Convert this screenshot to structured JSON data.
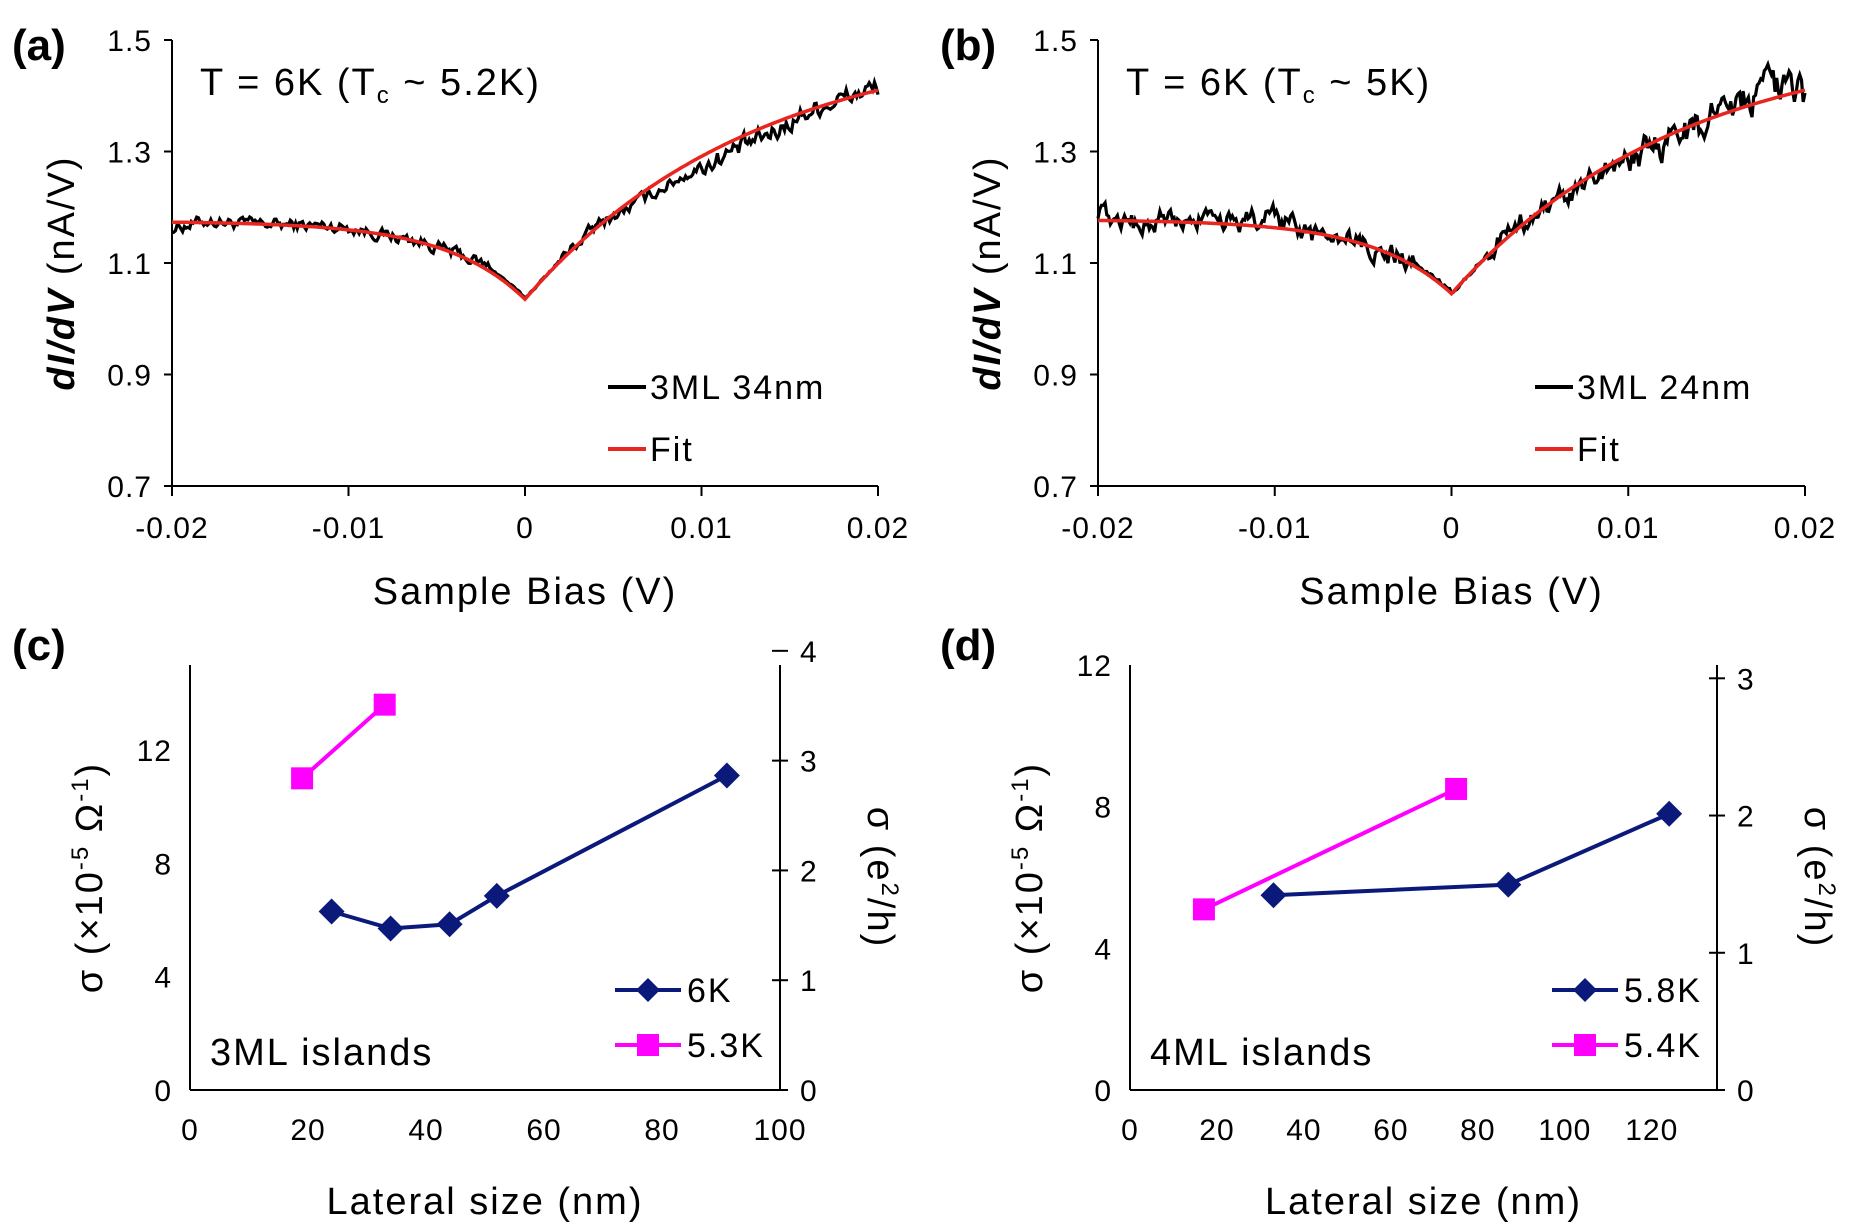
{
  "chart_data": [
    {
      "panel": "(a)",
      "type": "line",
      "annotation": {
        "main": "T = 6K (T",
        "sub": "c",
        "rest": " ~ 5.2K)"
      },
      "xlabel": "Sample Bias (V)",
      "ylabel": {
        "italic": "dI/dV",
        "unit": " (nA/V)"
      },
      "xlim": [
        -0.02,
        0.02
      ],
      "ylim": [
        0.7,
        1.5
      ],
      "xticks": [
        "-0.02",
        "-0.01",
        "0",
        "0.01",
        "0.02"
      ],
      "yticks": [
        "0.7",
        "0.9",
        "1.1",
        "1.3",
        "1.5"
      ],
      "legend": [
        {
          "name": "3ML 34nm",
          "color": "#000000"
        },
        {
          "name": "Fit",
          "color": "#e8251f"
        }
      ],
      "fit": {
        "min": 1.035,
        "left": 1.175,
        "right": 1.41,
        "width": 0.0035
      },
      "data": {
        "x": [
          -0.02,
          -0.018,
          -0.016,
          -0.014,
          -0.012,
          -0.01,
          -0.008,
          -0.006,
          -0.004,
          -0.002,
          -0.001,
          0.0,
          0.001,
          0.002,
          0.004,
          0.006,
          0.008,
          0.01,
          0.012,
          0.014,
          0.016,
          0.018,
          0.02
        ],
        "y": [
          1.15,
          1.18,
          1.17,
          1.17,
          1.17,
          1.17,
          1.15,
          1.14,
          1.12,
          1.1,
          1.07,
          1.04,
          1.07,
          1.11,
          1.17,
          1.19,
          1.22,
          1.25,
          1.28,
          1.31,
          1.37,
          1.4,
          1.42
        ]
      }
    },
    {
      "panel": "(b)",
      "type": "line",
      "annotation": {
        "main": "T = 6K (T",
        "sub": "c",
        "rest": " ~ 5K)"
      },
      "xlabel": "Sample Bias (V)",
      "ylabel": {
        "italic": "dI/dV",
        "unit": " (nA/V)"
      },
      "xlim": [
        -0.02,
        0.02
      ],
      "ylim": [
        0.7,
        1.5
      ],
      "xticks": [
        "-0.02",
        "-0.01",
        "0",
        "0.01",
        "0.02"
      ],
      "yticks": [
        "0.7",
        "0.9",
        "1.1",
        "1.3",
        "1.5"
      ],
      "legend": [
        {
          "name": "3ML 24nm",
          "color": "#000000"
        },
        {
          "name": "Fit",
          "color": "#e8251f"
        }
      ],
      "fit": {
        "min": 1.045,
        "left": 1.178,
        "right": 1.41,
        "width": 0.0035
      },
      "data": {
        "x": [
          -0.02,
          -0.018,
          -0.016,
          -0.014,
          -0.012,
          -0.01,
          -0.008,
          -0.006,
          -0.004,
          -0.002,
          -0.001,
          0.0,
          0.001,
          0.002,
          0.004,
          0.006,
          0.008,
          0.01,
          0.012,
          0.014,
          0.016,
          0.018,
          0.02
        ],
        "y": [
          1.22,
          1.16,
          1.19,
          1.17,
          1.18,
          1.2,
          1.14,
          1.13,
          1.12,
          1.1,
          1.08,
          1.05,
          1.08,
          1.12,
          1.18,
          1.21,
          1.24,
          1.28,
          1.31,
          1.34,
          1.41,
          1.44,
          1.38
        ]
      }
    },
    {
      "panel": "(c)",
      "type": "line",
      "annotation": "3ML islands",
      "xlabel": "Lateral size (nm)",
      "ylabel_left": {
        "pre": "σ (×10",
        "sup1": "-5",
        "mid": " Ω",
        "sup2": "-1",
        "post": ")"
      },
      "ylabel_right": {
        "pre": "σ (e",
        "sup": "2",
        "post": "/h)"
      },
      "xlim": [
        0,
        100
      ],
      "ylim": [
        0,
        15
      ],
      "ylim_right": [
        0,
        3.871
      ],
      "xticks": [
        "0",
        "20",
        "40",
        "60",
        "80",
        "100"
      ],
      "yticks_left": [
        "0",
        "4",
        "8",
        "12"
      ],
      "yticks_right": [
        "0",
        "1",
        "2",
        "3",
        "4"
      ],
      "series": [
        {
          "name": "6K",
          "color": "#0b1a7a",
          "marker": "diamond",
          "x": [
            24,
            34,
            44,
            52,
            91
          ],
          "y": [
            6.3,
            5.7,
            5.85,
            6.85,
            11.1
          ]
        },
        {
          "name": "5.3K",
          "color": "#ff00ff",
          "marker": "square",
          "x": [
            19,
            33
          ],
          "y": [
            11.0,
            13.6
          ]
        }
      ]
    },
    {
      "panel": "(d)",
      "type": "line",
      "annotation": "4ML islands",
      "xlabel": "Lateral size (nm)",
      "ylabel_left": {
        "pre": "σ (×10",
        "sup1": "-5",
        "mid": " Ω",
        "sup2": "-1",
        "post": ")"
      },
      "ylabel_right": {
        "pre": "σ (e",
        "sup": "2",
        "post": "/h)"
      },
      "xlim": [
        0,
        135
      ],
      "ylim": [
        0,
        12
      ],
      "ylim_right": [
        0,
        3.097
      ],
      "xticks": [
        "0",
        "20",
        "40",
        "60",
        "80",
        "100",
        "120"
      ],
      "yticks_left": [
        "0",
        "4",
        "8",
        "12"
      ],
      "yticks_right": [
        "0",
        "1",
        "2",
        "3"
      ],
      "series": [
        {
          "name": "5.8K",
          "color": "#0b1a7a",
          "marker": "diamond",
          "x": [
            33,
            87,
            124
          ],
          "y": [
            5.5,
            5.8,
            7.8
          ]
        },
        {
          "name": "5.4K",
          "color": "#ff00ff",
          "marker": "square",
          "x": [
            17,
            75
          ],
          "y": [
            5.1,
            8.5
          ]
        }
      ]
    }
  ]
}
